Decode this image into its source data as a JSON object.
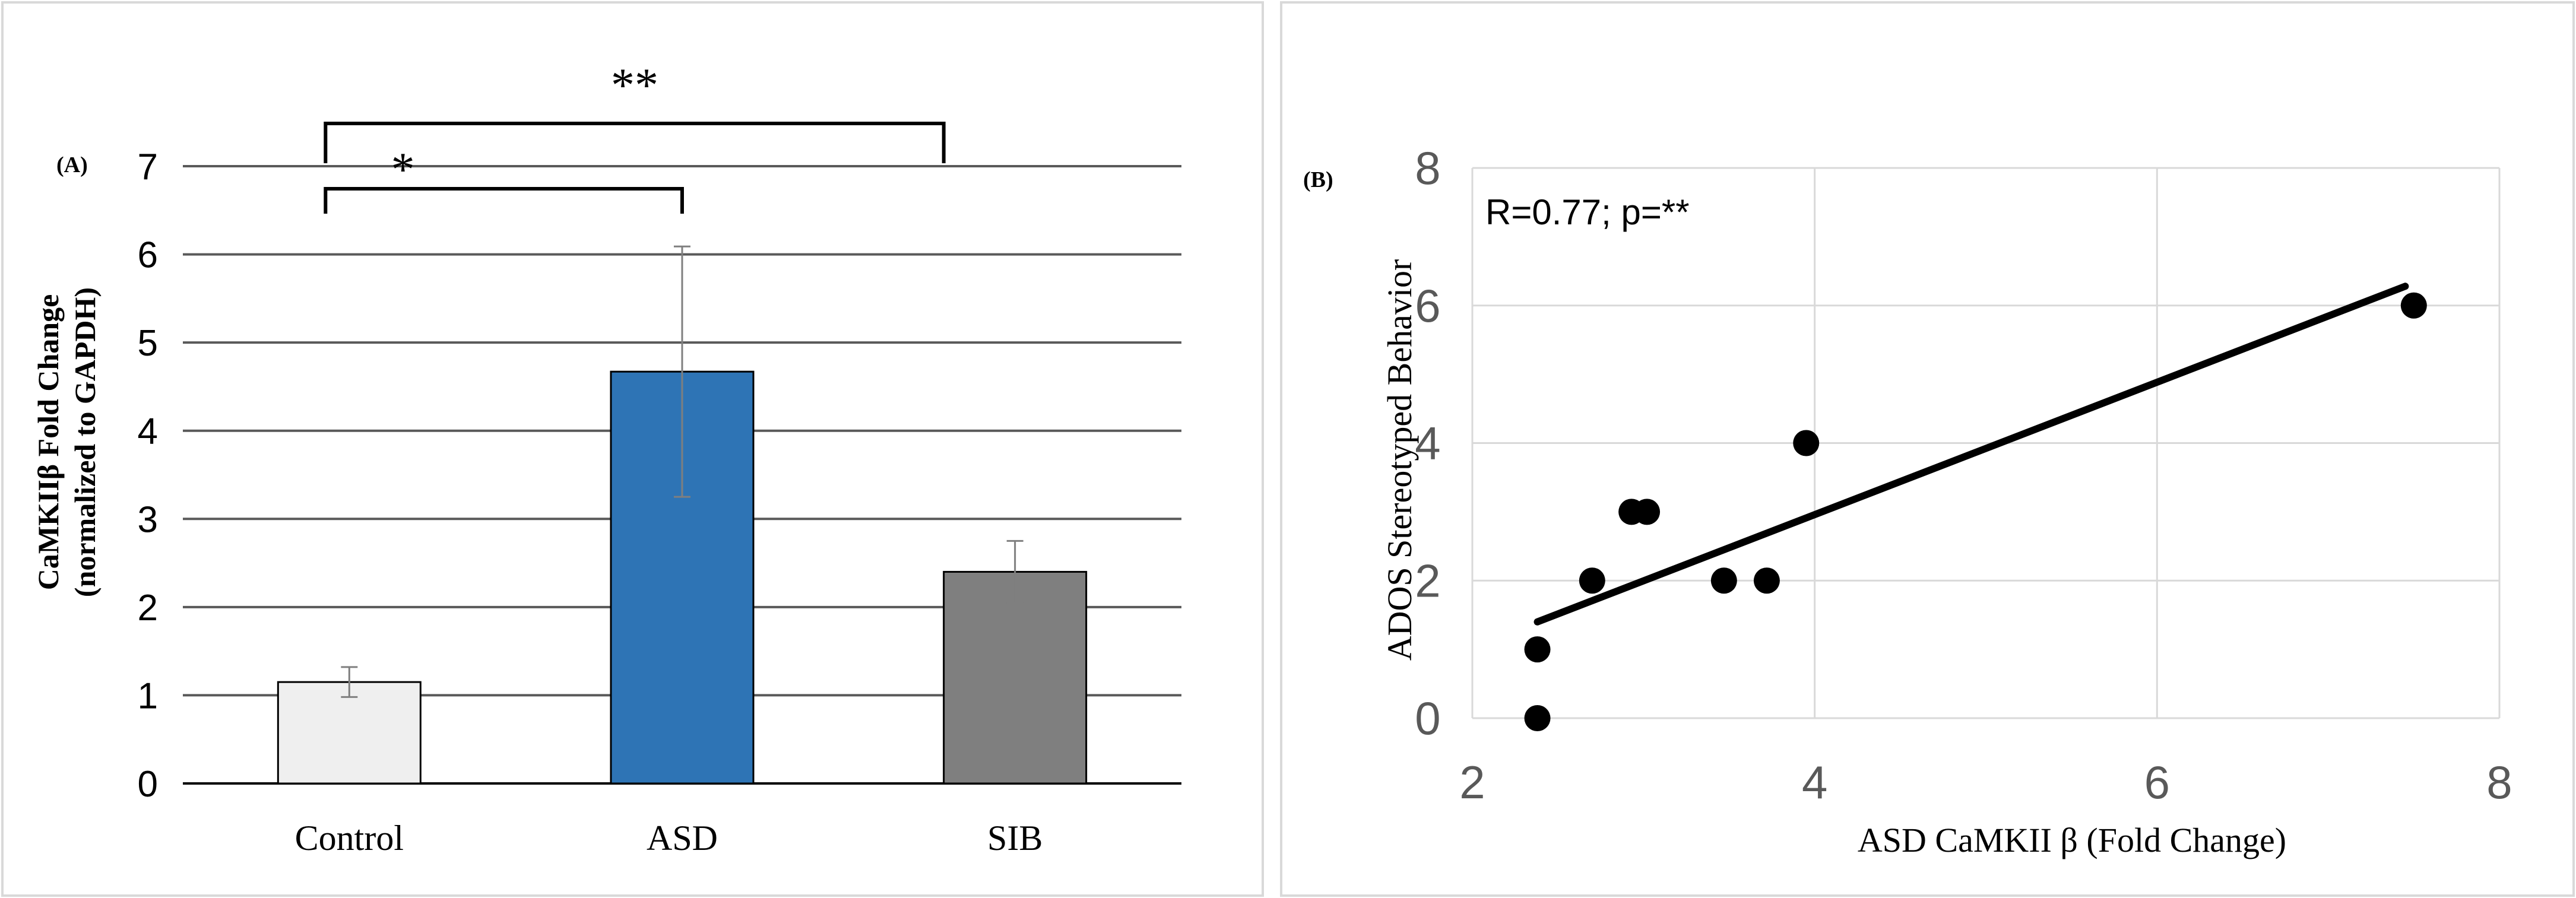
{
  "colors": {
    "control": "#efefef",
    "asd": "#2e74b5",
    "sib": "#7f7f7f",
    "gridlines_a": "#595959",
    "gridlines_b": "#d9d9d9",
    "frame": "#d9d9d9"
  },
  "chart_data": [
    {
      "panel": "(A)",
      "type": "bar",
      "title": "",
      "xlabel": "",
      "ylabel_line1": "CaMKIIβ Fold Change",
      "ylabel_line2": "(normalized to GAPDH)",
      "categories": [
        "Control",
        "ASD",
        "SIB"
      ],
      "values": [
        1.15,
        4.67,
        2.4
      ],
      "errors": [
        0.17,
        1.42,
        0.35
      ],
      "ylim": [
        0,
        7
      ],
      "yticks": [
        "0",
        "1",
        "2",
        "3",
        "4",
        "5",
        "6",
        "7"
      ],
      "significance": [
        {
          "from": "Control",
          "to": "ASD",
          "label": "*"
        },
        {
          "from": "Control",
          "to": "SIB",
          "label": "**"
        }
      ]
    },
    {
      "panel": "(B)",
      "type": "scatter",
      "title": "",
      "xlabel": "ASD CaMKII β (Fold Change)",
      "ylabel": "ADOS Stereotyped Behavior",
      "xlim": [
        2,
        8
      ],
      "ylim": [
        0,
        8
      ],
      "xticks": [
        "2",
        "4",
        "6",
        "8"
      ],
      "yticks": [
        "0",
        "2",
        "4",
        "6",
        "8"
      ],
      "points": [
        {
          "x": 2.38,
          "y": 0
        },
        {
          "x": 2.38,
          "y": 1
        },
        {
          "x": 2.7,
          "y": 2
        },
        {
          "x": 2.93,
          "y": 3
        },
        {
          "x": 3.02,
          "y": 3
        },
        {
          "x": 3.47,
          "y": 2
        },
        {
          "x": 3.72,
          "y": 2
        },
        {
          "x": 3.95,
          "y": 4
        },
        {
          "x": 7.5,
          "y": 6
        }
      ],
      "trendline": {
        "x1": 2.38,
        "y1": 1.4,
        "x2": 7.45,
        "y2": 6.28
      },
      "annotation": "R=0.77; p=**"
    }
  ]
}
